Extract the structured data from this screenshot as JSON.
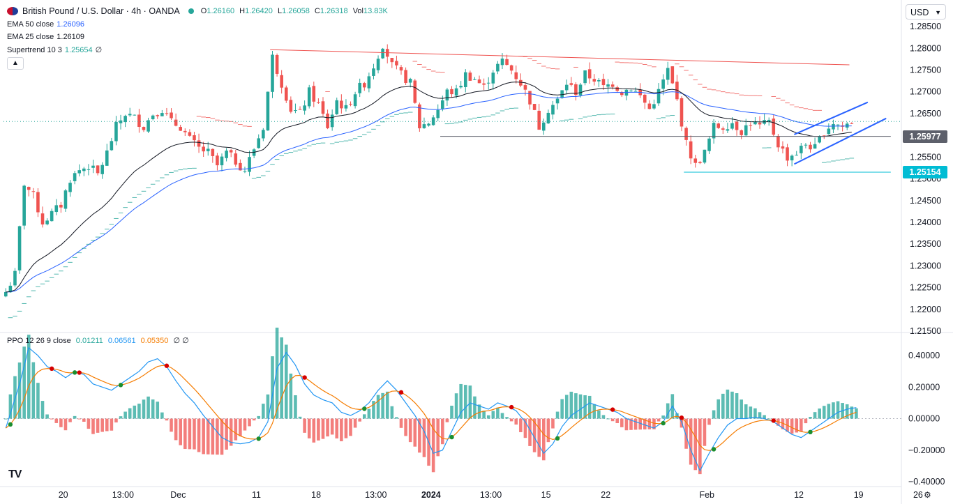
{
  "header": {
    "symbol": "British Pound / U.S. Dollar · 4h · OANDA",
    "ohlc": [
      {
        "k": "O",
        "v": "1.26160"
      },
      {
        "k": "H",
        "v": "1.26420"
      },
      {
        "k": "L",
        "v": "1.26058"
      },
      {
        "k": "C",
        "v": "1.26318"
      },
      {
        "k": "Vol",
        "v": "13.83K"
      }
    ]
  },
  "indicators": [
    {
      "label": "EMA 50 close",
      "value": "1.26096",
      "color": "#2962ff"
    },
    {
      "label": "EMA 25 close",
      "value": "1.26109",
      "color": "#131722"
    },
    {
      "label": "Supertrend 10 3",
      "value": "1.25654",
      "color": "#26a69a",
      "extra": "∅"
    }
  ],
  "collapse_icon": "chevron-up-icon",
  "currency": "USD",
  "ppo_legend": {
    "label": "PPO 12 26 9 close",
    "values": [
      {
        "v": "0.01211",
        "color": "#26a69a"
      },
      {
        "v": "0.06561",
        "color": "#2196f3"
      },
      {
        "v": "0.05350",
        "color": "#f57c00"
      }
    ],
    "extra": "∅ ∅"
  },
  "price_tags": [
    {
      "value": "1.25977",
      "price": 1.25977,
      "color": "#5d606b"
    },
    {
      "value": "1.25154",
      "price": 1.25154,
      "color": "#00bcd4"
    }
  ],
  "colors": {
    "up": "#26a69a",
    "down": "#ef5350",
    "ema50": "#2962ff",
    "ema25": "#131722",
    "ppo": "#2196f3",
    "signal": "#f57c00",
    "trend": "#2962ff",
    "resistance": "#ef5350"
  },
  "chart_data": [
    {
      "type": "candlestick",
      "title": "British Pound / U.S. Dollar · 4h · OANDA",
      "x_ticks": [
        "20",
        "13:00",
        "Dec",
        "11",
        "18",
        "13:00",
        "2024",
        "13:00",
        "15",
        "22",
        "Feb",
        "12",
        "19",
        "26"
      ],
      "y_ticks": [
        "1.28500",
        "1.28000",
        "1.27500",
        "1.27000",
        "1.26500",
        "1.26000",
        "1.25500",
        "1.25000",
        "1.24500",
        "1.24000",
        "1.23500",
        "1.23000",
        "1.22500",
        "1.22000",
        "1.21500"
      ],
      "ylim": [
        1.215,
        1.2855
      ],
      "close_path": [
        [
          0,
          1.224
        ],
        [
          2,
          1.228
        ],
        [
          4,
          1.249
        ],
        [
          6,
          1.246
        ],
        [
          8,
          1.24
        ],
        [
          10,
          1.242
        ],
        [
          12,
          1.244
        ],
        [
          14,
          1.25
        ],
        [
          16,
          1.252
        ],
        [
          18,
          1.253
        ],
        [
          20,
          1.251
        ],
        [
          22,
          1.256
        ],
        [
          24,
          1.262
        ],
        [
          26,
          1.265
        ],
        [
          28,
          1.264
        ],
        [
          30,
          1.262
        ],
        [
          32,
          1.265
        ],
        [
          34,
          1.266
        ],
        [
          36,
          1.263
        ],
        [
          38,
          1.262
        ],
        [
          40,
          1.259
        ],
        [
          42,
          1.257
        ],
        [
          44,
          1.256
        ],
        [
          46,
          1.253
        ],
        [
          48,
          1.256
        ],
        [
          50,
          1.254
        ],
        [
          52,
          1.252
        ],
        [
          54,
          1.257
        ],
        [
          56,
          1.262
        ],
        [
          58,
          1.278
        ],
        [
          60,
          1.272
        ],
        [
          62,
          1.266
        ],
        [
          64,
          1.265
        ],
        [
          66,
          1.27
        ],
        [
          68,
          1.267
        ],
        [
          70,
          1.262
        ],
        [
          72,
          1.268
        ],
        [
          74,
          1.266
        ],
        [
          76,
          1.27
        ],
        [
          78,
          1.272
        ],
        [
          80,
          1.276
        ],
        [
          82,
          1.281
        ],
        [
          84,
          1.276
        ],
        [
          86,
          1.274
        ],
        [
          88,
          1.272
        ],
        [
          90,
          1.262
        ],
        [
          92,
          1.263
        ],
        [
          94,
          1.266
        ],
        [
          96,
          1.27
        ],
        [
          98,
          1.27
        ],
        [
          100,
          1.274
        ],
        [
          102,
          1.273
        ],
        [
          104,
          1.271
        ],
        [
          106,
          1.275
        ],
        [
          108,
          1.277
        ],
        [
          110,
          1.275
        ],
        [
          112,
          1.272
        ],
        [
          114,
          1.268
        ],
        [
          116,
          1.262
        ],
        [
          118,
          1.266
        ],
        [
          120,
          1.268
        ],
        [
          122,
          1.272
        ],
        [
          124,
          1.27
        ],
        [
          126,
          1.274
        ],
        [
          128,
          1.273
        ],
        [
          130,
          1.271
        ],
        [
          132,
          1.272
        ],
        [
          134,
          1.27
        ],
        [
          136,
          1.271
        ],
        [
          138,
          1.269
        ],
        [
          140,
          1.266
        ],
        [
          142,
          1.27
        ],
        [
          144,
          1.275
        ],
        [
          146,
          1.268
        ],
        [
          148,
          1.258
        ],
        [
          150,
          1.253
        ],
        [
          152,
          1.256
        ],
        [
          154,
          1.262
        ],
        [
          156,
          1.262
        ],
        [
          158,
          1.263
        ],
        [
          160,
          1.261
        ],
        [
          162,
          1.263
        ],
        [
          164,
          1.262
        ],
        [
          166,
          1.263
        ],
        [
          168,
          1.258
        ],
        [
          170,
          1.255
        ],
        [
          172,
          1.256
        ],
        [
          174,
          1.258
        ],
        [
          176,
          1.257
        ],
        [
          178,
          1.261
        ],
        [
          180,
          1.263
        ],
        [
          182,
          1.262
        ],
        [
          184,
          1.26318
        ]
      ],
      "lines": [
        {
          "name": "resistance",
          "from": [
            58,
            1.2797
          ],
          "to": [
            184,
            1.2762
          ]
        },
        {
          "name": "support 1.25977",
          "from": [
            95,
            1.25977
          ],
          "to": [
            193,
            1.25977
          ]
        },
        {
          "name": "support 1.25154",
          "from": [
            148,
            1.25154
          ],
          "to": [
            193,
            1.25154
          ]
        },
        {
          "name": "channel-upper",
          "from": [
            172,
            1.2602
          ],
          "to": [
            188,
            1.2676
          ]
        },
        {
          "name": "channel-lower",
          "from": [
            172,
            1.2534
          ],
          "to": [
            192,
            1.2639
          ]
        }
      ],
      "series": [
        {
          "name": "EMA 50 close"
        },
        {
          "name": "EMA 25 close"
        },
        {
          "name": "Supertrend 10 3"
        }
      ]
    },
    {
      "type": "line",
      "title": "PPO 12 26 9 close",
      "x_ticks": [
        "20",
        "13:00",
        "Dec",
        "11",
        "18",
        "13:00",
        "2024",
        "13:00",
        "15",
        "22",
        "Feb",
        "12",
        "19",
        "26"
      ],
      "y_ticks": [
        "0.40000",
        "0.20000",
        "0.00000",
        "−0.20000",
        "−0.40000"
      ],
      "ylim": [
        -0.4,
        0.48
      ],
      "ppo_path": [
        [
          0,
          -0.06
        ],
        [
          3,
          0.22
        ],
        [
          5,
          0.45
        ],
        [
          7,
          0.4
        ],
        [
          9,
          0.33
        ],
        [
          11,
          0.3
        ],
        [
          13,
          0.26
        ],
        [
          15,
          0.3
        ],
        [
          17,
          0.28
        ],
        [
          19,
          0.22
        ],
        [
          21,
          0.2
        ],
        [
          23,
          0.18
        ],
        [
          25,
          0.22
        ],
        [
          27,
          0.26
        ],
        [
          29,
          0.3
        ],
        [
          31,
          0.36
        ],
        [
          33,
          0.38
        ],
        [
          35,
          0.33
        ],
        [
          37,
          0.24
        ],
        [
          39,
          0.16
        ],
        [
          41,
          0.1
        ],
        [
          43,
          0.02
        ],
        [
          45,
          -0.05
        ],
        [
          47,
          -0.12
        ],
        [
          49,
          -0.15
        ],
        [
          51,
          -0.16
        ],
        [
          53,
          -0.15
        ],
        [
          55,
          -0.12
        ],
        [
          57,
          -0.02
        ],
        [
          59,
          0.32
        ],
        [
          61,
          0.42
        ],
        [
          63,
          0.34
        ],
        [
          65,
          0.22
        ],
        [
          67,
          0.15
        ],
        [
          69,
          0.12
        ],
        [
          71,
          0.1
        ],
        [
          73,
          0.04
        ],
        [
          75,
          0.02
        ],
        [
          77,
          0.05
        ],
        [
          79,
          0.1
        ],
        [
          81,
          0.18
        ],
        [
          83,
          0.24
        ],
        [
          85,
          0.18
        ],
        [
          87,
          0.1
        ],
        [
          89,
          0.02
        ],
        [
          91,
          -0.08
        ],
        [
          93,
          -0.22
        ],
        [
          95,
          -0.2
        ],
        [
          97,
          -0.08
        ],
        [
          99,
          0.04
        ],
        [
          101,
          0.1
        ],
        [
          103,
          0.08
        ],
        [
          105,
          0.06
        ],
        [
          107,
          0.1
        ],
        [
          109,
          0.08
        ],
        [
          111,
          0.05
        ],
        [
          113,
          -0.02
        ],
        [
          115,
          -0.12
        ],
        [
          117,
          -0.22
        ],
        [
          119,
          -0.16
        ],
        [
          121,
          -0.05
        ],
        [
          123,
          0.02
        ],
        [
          125,
          0.06
        ],
        [
          127,
          0.1
        ],
        [
          129,
          0.08
        ],
        [
          131,
          0.06
        ],
        [
          133,
          0.04
        ],
        [
          135,
          0.0
        ],
        [
          137,
          -0.02
        ],
        [
          139,
          -0.04
        ],
        [
          141,
          -0.06
        ],
        [
          143,
          -0.02
        ],
        [
          145,
          0.08
        ],
        [
          147,
          -0.02
        ],
        [
          149,
          -0.2
        ],
        [
          151,
          -0.33
        ],
        [
          153,
          -0.22
        ],
        [
          155,
          -0.12
        ],
        [
          157,
          -0.04
        ],
        [
          159,
          0.0
        ],
        [
          161,
          0.0
        ],
        [
          163,
          0.01
        ],
        [
          165,
          0.0
        ],
        [
          167,
          -0.02
        ],
        [
          169,
          -0.06
        ],
        [
          171,
          -0.1
        ],
        [
          173,
          -0.12
        ],
        [
          175,
          -0.08
        ],
        [
          177,
          -0.04
        ],
        [
          179,
          0.0
        ],
        [
          181,
          0.04
        ],
        [
          183,
          0.06
        ],
        [
          185,
          0.07
        ]
      ]
    }
  ]
}
